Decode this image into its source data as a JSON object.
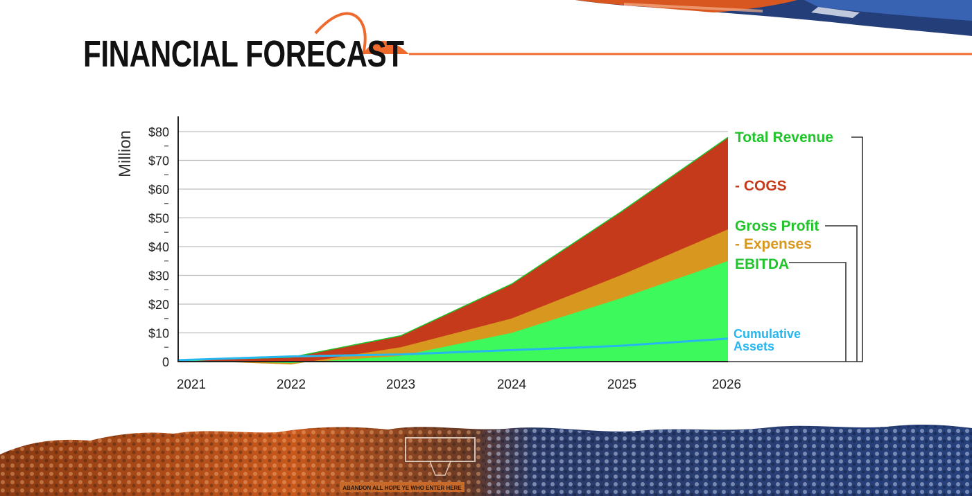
{
  "page": {
    "title": "FINANCIAL FORECAST"
  },
  "colors": {
    "accent": "#ef6a2d",
    "revenue": "#21c42b",
    "cogs": "#c63a1c",
    "expenses": "#d8971e",
    "ebitda": "#3df95b",
    "assets": "#27b7ef",
    "grid": "#bdbdbd"
  },
  "chart_data": {
    "type": "area",
    "ylabel": "Million",
    "ylim": [
      0,
      85
    ],
    "x": [
      "2021",
      "2022",
      "2023",
      "2024",
      "2025",
      "2026"
    ],
    "y_ticks": [
      "0",
      "$10",
      "$20",
      "$30",
      "$40",
      "$50",
      "$60",
      "$70",
      "$80"
    ],
    "y_tick_values": [
      0,
      10,
      20,
      30,
      40,
      50,
      60,
      70,
      80
    ],
    "grid": true,
    "series": [
      {
        "name": "Total Revenue",
        "values": [
          0.5,
          1.5,
          9,
          27,
          52,
          78
        ]
      },
      {
        "name": "Gross Profit",
        "values": [
          0.5,
          -1,
          5,
          15,
          30,
          46
        ]
      },
      {
        "name": "EBITDA",
        "values": [
          0.5,
          -0.5,
          2,
          10,
          22,
          35
        ]
      },
      {
        "name": "Cumulative Assets",
        "values": [
          0.5,
          1.8,
          2.5,
          4,
          5.5,
          8
        ]
      }
    ],
    "band_labels": {
      "cogs": "- COGS",
      "expenses": "- Expenses"
    },
    "legend": {
      "total_revenue": "Total Revenue",
      "cogs": "- COGS",
      "gross_profit": "Gross Profit",
      "expenses": "- Expenses",
      "ebitda": "EBITDA",
      "cumulative_assets_line1": "Cumulative",
      "cumulative_assets_line2": "Assets"
    }
  },
  "banner": {
    "sign_text": "ABANDON ALL HOPE YE WHO ENTER HERE"
  }
}
